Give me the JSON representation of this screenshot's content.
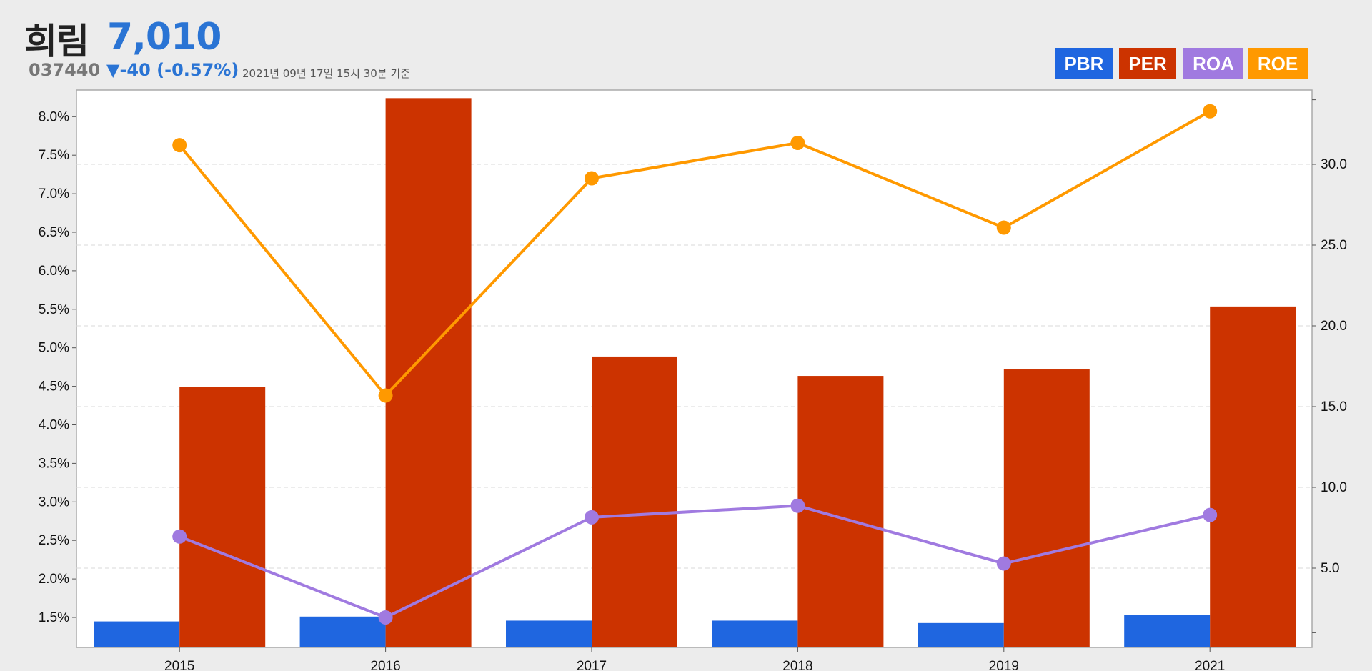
{
  "stock": {
    "name": "희림",
    "price": "7,010",
    "code": "037440",
    "change": "▼-40 (-0.57%)",
    "timestamp": "2021년 09년 17일 15시 30분 기준"
  },
  "colors": {
    "PBR": "#1f66e0",
    "PER": "#cc3300",
    "ROA": "#a07ae0",
    "ROE": "#ff9900",
    "price": "#2a74d4"
  },
  "chart_data": {
    "type": "bar",
    "categories": [
      "2015",
      "2016",
      "2017",
      "2018",
      "2019",
      "2021"
    ],
    "left_axis": {
      "ticks": [
        "1.5%",
        "2.0%",
        "2.5%",
        "3.0%",
        "3.5%",
        "4.0%",
        "4.5%",
        "5.0%",
        "5.5%",
        "6.0%",
        "6.5%",
        "7.0%",
        "7.5%",
        "8.0%"
      ],
      "range": [
        1.12,
        8.0
      ]
    },
    "right_axis": {
      "ticks": [
        "5.0",
        "10.0",
        "15.0",
        "20.0",
        "25.0",
        "30.0"
      ],
      "range": [
        0.8,
        34.0
      ]
    },
    "grid": true,
    "legend": "top-right",
    "series": [
      {
        "name": "PBR",
        "type": "bar",
        "axis": "right",
        "values": [
          1.7,
          2.0,
          1.75,
          1.75,
          1.6,
          2.1
        ]
      },
      {
        "name": "PER",
        "type": "bar",
        "axis": "right",
        "values": [
          16.2,
          34.1,
          18.1,
          16.9,
          17.3,
          21.2
        ]
      },
      {
        "name": "ROA",
        "type": "line",
        "axis": "left",
        "values": [
          2.55,
          1.5,
          2.8,
          2.95,
          2.2,
          2.83
        ]
      },
      {
        "name": "ROE",
        "type": "line",
        "axis": "left",
        "values": [
          7.63,
          4.38,
          7.2,
          7.66,
          6.56,
          8.07
        ]
      }
    ]
  }
}
